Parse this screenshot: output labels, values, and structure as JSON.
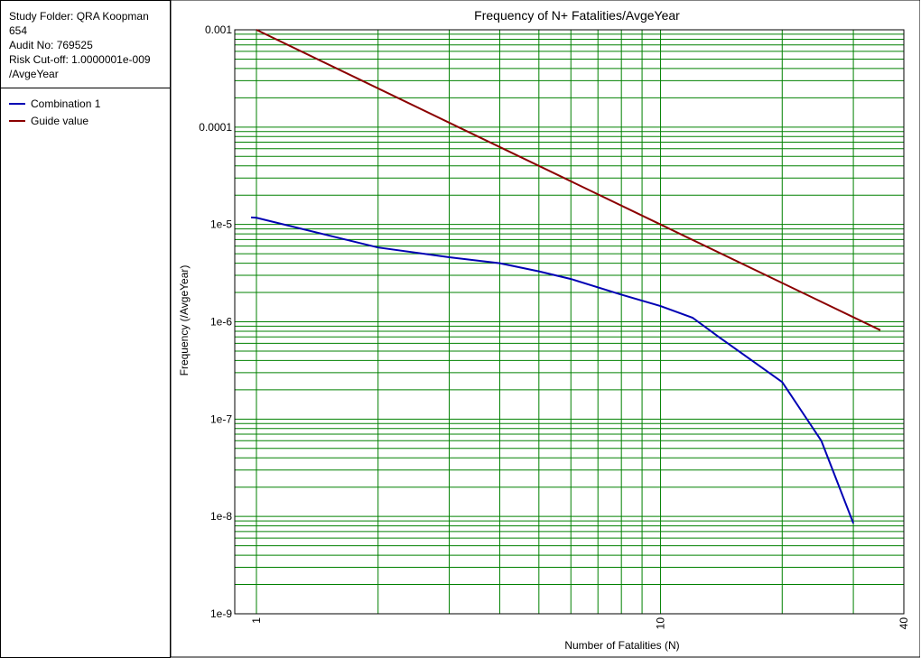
{
  "info": {
    "lines": [
      "Study Folder: QRA Koopman",
      "654",
      "Audit No: 769525",
      "Risk Cut-off: 1.0000001e-009",
      "/AvgeYear"
    ]
  },
  "colors": {
    "combination": "#0000b4",
    "guide": "#8b0000",
    "grid": "#008000"
  },
  "chart_data": {
    "type": "line",
    "title": "Frequency of N+ Fatalities/AvgeYear",
    "xlabel": "Number of Fatalities (N)",
    "ylabel": "Frequency (/AvgeYear)",
    "x_scale": "log",
    "y_scale": "log",
    "xlim": [
      1,
      40
    ],
    "ylim": [
      1e-09,
      0.001
    ],
    "x_tick_labels": [
      "1",
      "10",
      "40"
    ],
    "x_tick_values": [
      1,
      10,
      40
    ],
    "y_tick_labels": [
      "0.001",
      "0.0001",
      "1e-5",
      "1e-6",
      "1e-7",
      "1e-8",
      "1e-9"
    ],
    "y_tick_values": [
      0.001,
      0.0001,
      1e-05,
      1e-06,
      1e-07,
      1e-08,
      1e-09
    ],
    "grid": true,
    "legend_position": "left-panel",
    "series": [
      {
        "name": "Combination 1",
        "x": [
          0.97,
          1,
          2,
          3,
          4,
          5,
          6,
          8,
          10,
          12,
          14,
          20,
          25,
          30
        ],
        "y": [
          1.18e-05,
          1.17e-05,
          5.8e-06,
          4.6e-06,
          4e-06,
          3.3e-06,
          2.75e-06,
          1.9e-06,
          1.45e-06,
          1.1e-06,
          6.9e-07,
          2.4e-07,
          6e-08,
          8.5e-09
        ]
      },
      {
        "name": "Guide value",
        "x": [
          1,
          10,
          35
        ],
        "y": [
          0.001,
          1e-05,
          8.2e-07
        ]
      }
    ]
  }
}
